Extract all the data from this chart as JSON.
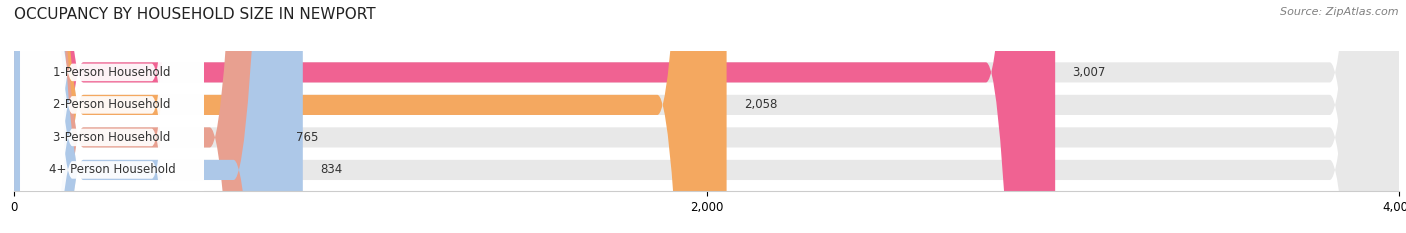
{
  "title": "OCCUPANCY BY HOUSEHOLD SIZE IN NEWPORT",
  "source": "Source: ZipAtlas.com",
  "categories": [
    "1-Person Household",
    "2-Person Household",
    "3-Person Household",
    "4+ Person Household"
  ],
  "values": [
    3007,
    2058,
    765,
    834
  ],
  "bar_colors": [
    "#f06292",
    "#f4a860",
    "#e8a090",
    "#adc8e8"
  ],
  "bar_bg_color": "#e8e8e8",
  "xlim": [
    0,
    4000
  ],
  "xticks": [
    0,
    2000,
    4000
  ],
  "title_fontsize": 11,
  "label_fontsize": 8.5,
  "value_fontsize": 8.5,
  "source_fontsize": 8,
  "bar_height": 0.62,
  "background_color": "#ffffff"
}
